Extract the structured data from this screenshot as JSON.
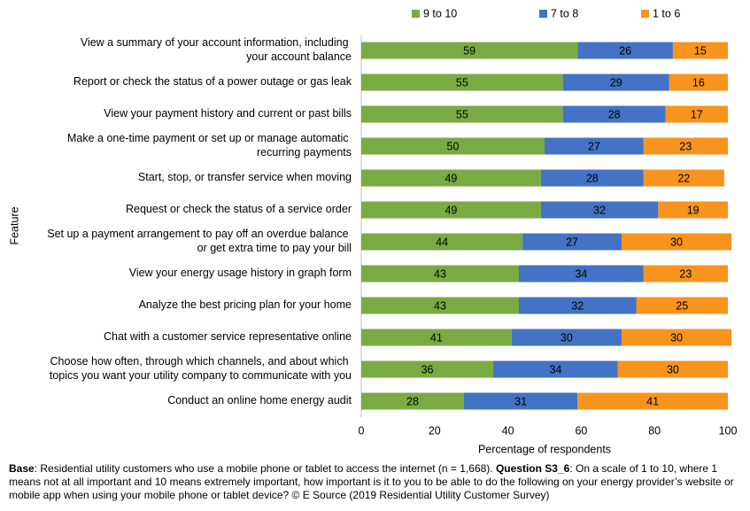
{
  "chart_data": {
    "type": "stacked-bar-horizontal",
    "categories": [
      "View a summary of your account information, including\nyour account balance",
      "Report or check the status of a power outage or gas leak",
      "View your payment history and current or past bills",
      "Make a one-time payment or set up or manage automatic\nrecurring payments",
      "Start, stop, or transfer service when moving",
      "Request or check the status of a service order",
      "Set up a payment arrangement to pay off an overdue balance\nor get extra time to pay your bill",
      "View your energy usage history in graph form",
      "Analyze the best pricing plan for your home",
      "Chat with a customer service representative online",
      "Choose how often, through which channels, and about which\ntopics you want your utility company to communicate with you",
      "Conduct an online home energy audit"
    ],
    "series": [
      {
        "name": "9 to 10",
        "color": "#7aab43",
        "values": [
          59,
          55,
          55,
          50,
          49,
          49,
          44,
          43,
          43,
          41,
          36,
          28
        ]
      },
      {
        "name": "7 to 8",
        "color": "#4472c4",
        "values": [
          26,
          29,
          28,
          27,
          28,
          32,
          27,
          34,
          32,
          30,
          34,
          31
        ]
      },
      {
        "name": "1 to 6",
        "color": "#f7941d",
        "values": [
          15,
          16,
          17,
          23,
          22,
          19,
          30,
          23,
          25,
          30,
          30,
          41
        ]
      }
    ],
    "xlim": [
      0,
      100
    ],
    "xticks": [
      0,
      20,
      40,
      60,
      80,
      100
    ],
    "xlabel": "Percentage of respondents",
    "ylabel": "Feature",
    "legend": "top",
    "footnote": [
      "Base",
      ": Residential utility customers who use a mobile phone or tablet to access the internet (n = 1,668). ",
      "Question S3_6",
      ": On a scale of 1 to 10, where 1 means not at all important and 10 means extremely important, how important is it to you to be able to do the following on your energy provider’s website or mobile app when using your mobile phone or tablet device? © E Source (2019 Residential Utility Customer Survey)"
    ]
  }
}
